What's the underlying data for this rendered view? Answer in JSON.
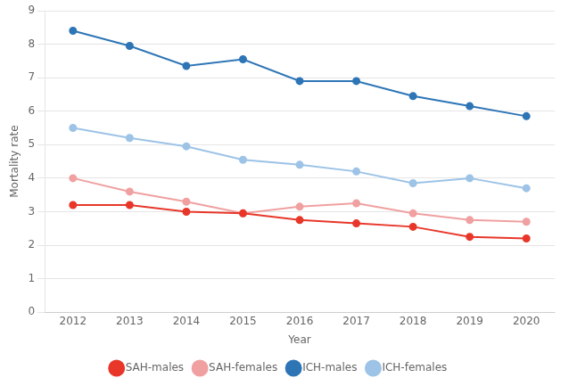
{
  "chart_data": {
    "type": "line",
    "x_label": "Year",
    "y_label": "Mortality rate",
    "x": [
      2012,
      2013,
      2014,
      2015,
      2016,
      2017,
      2018,
      2019,
      2020
    ],
    "series": [
      {
        "name": "SAH-males",
        "color": "#e8372a",
        "values": [
          3.2,
          3.2,
          3.0,
          2.95,
          2.75,
          2.65,
          2.55,
          2.25,
          2.2
        ]
      },
      {
        "name": "SAH-females",
        "color": "#f0a0a0",
        "values": [
          4.0,
          3.6,
          3.3,
          2.95,
          3.15,
          3.25,
          2.95,
          2.75,
          2.7
        ]
      },
      {
        "name": "ICH-males",
        "color": "#2e75b6",
        "values": [
          8.4,
          7.95,
          7.35,
          7.55,
          6.9,
          6.9,
          6.45,
          6.15,
          5.85
        ]
      },
      {
        "name": "ICH-females",
        "color": "#9dc3e6",
        "values": [
          5.5,
          5.2,
          4.95,
          4.55,
          4.4,
          4.2,
          3.85,
          4.0,
          3.7
        ]
      }
    ],
    "xlim": [
      2011.5,
      2020.5
    ],
    "xticks": [
      2012,
      2013,
      2014,
      2015,
      2016,
      2017,
      2018,
      2019,
      2020
    ],
    "ylim": [
      0,
      9
    ],
    "yticks": [
      0,
      1,
      2,
      3,
      4,
      5,
      6,
      7,
      8,
      9
    ],
    "grid": "y",
    "legend": "bottom",
    "marker": "circle",
    "line_style": "solid"
  }
}
